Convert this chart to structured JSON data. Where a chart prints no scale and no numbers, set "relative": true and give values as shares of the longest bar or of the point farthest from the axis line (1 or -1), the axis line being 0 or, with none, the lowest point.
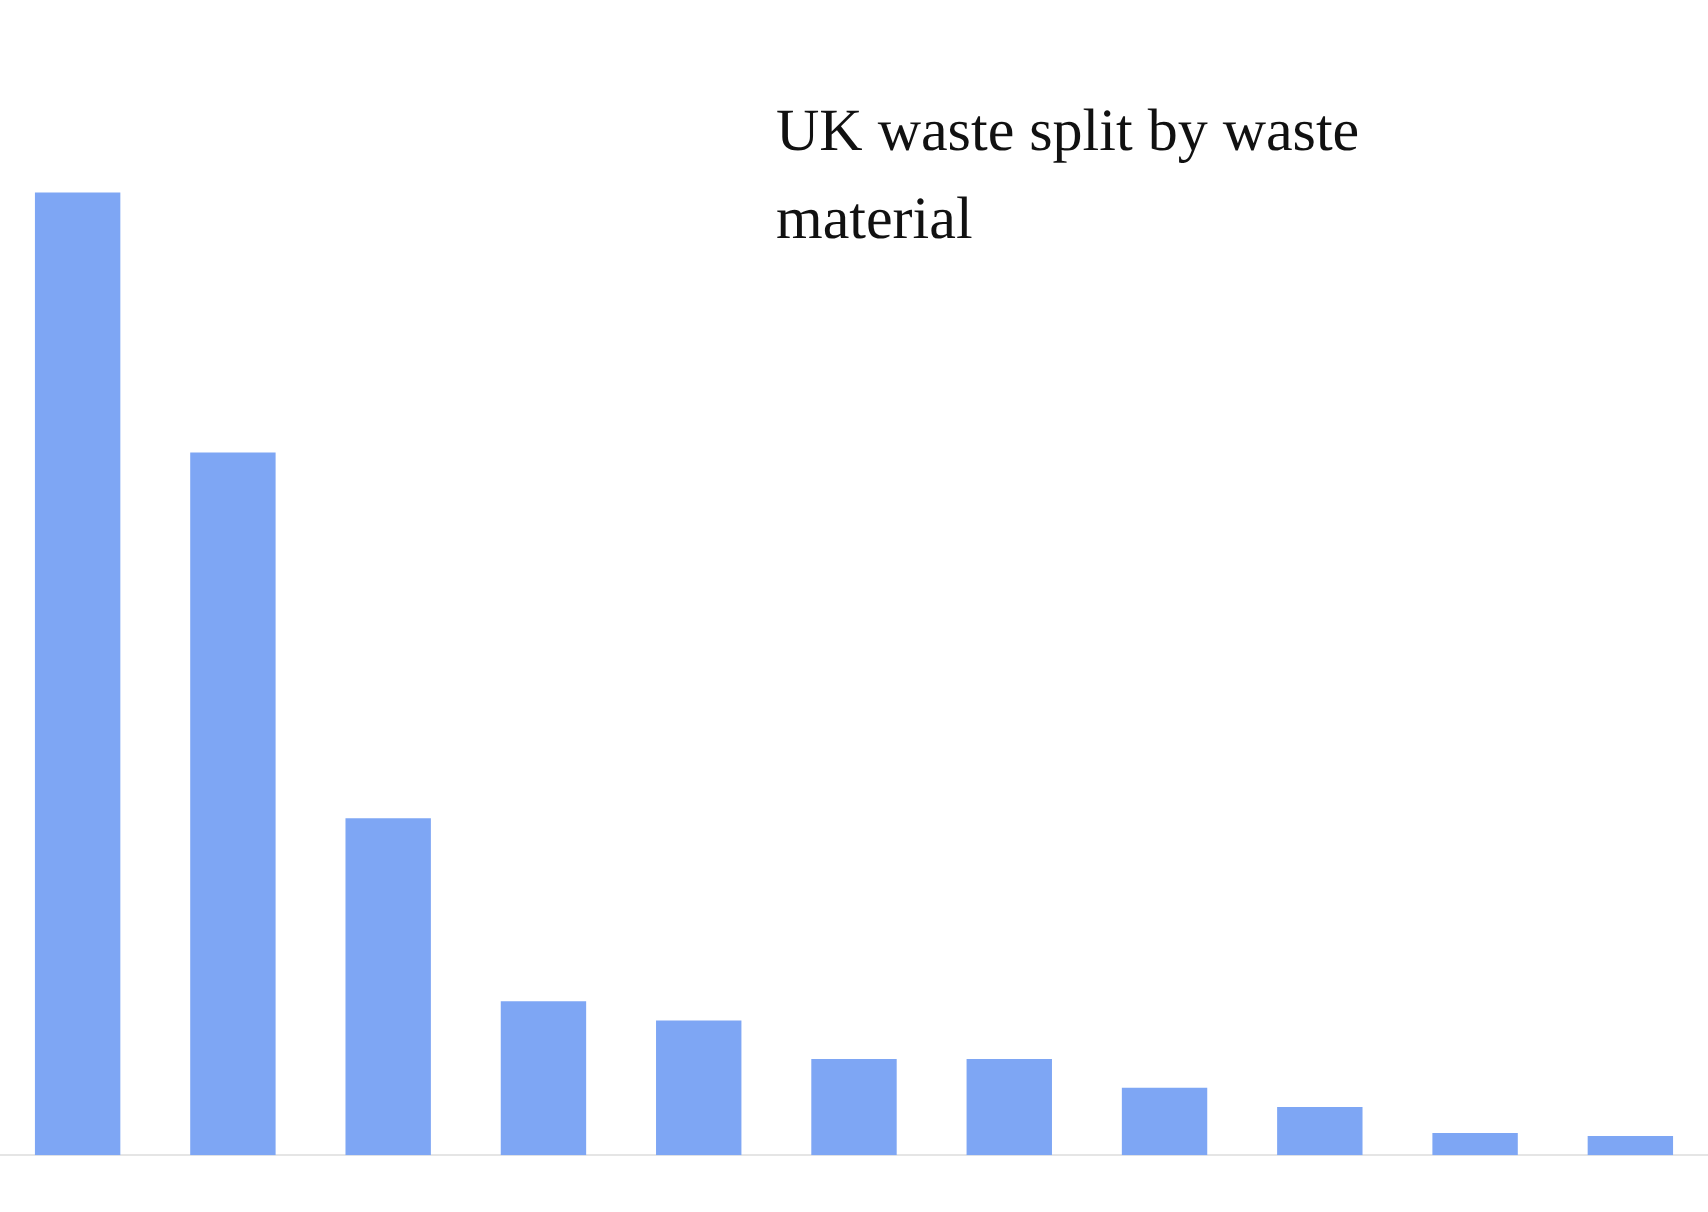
{
  "chart_data": {
    "type": "bar",
    "title": "UK waste split by waste material",
    "relative": true,
    "categories": [
      null,
      null,
      null,
      null,
      null,
      null,
      null,
      null,
      null,
      null,
      null
    ],
    "values": [
      1,
      0.73,
      0.35,
      0.16,
      0.14,
      0.1,
      0.1,
      0.07,
      0.05,
      0.023,
      0.02
    ],
    "color": "#7ea6f4",
    "legend": false
  }
}
